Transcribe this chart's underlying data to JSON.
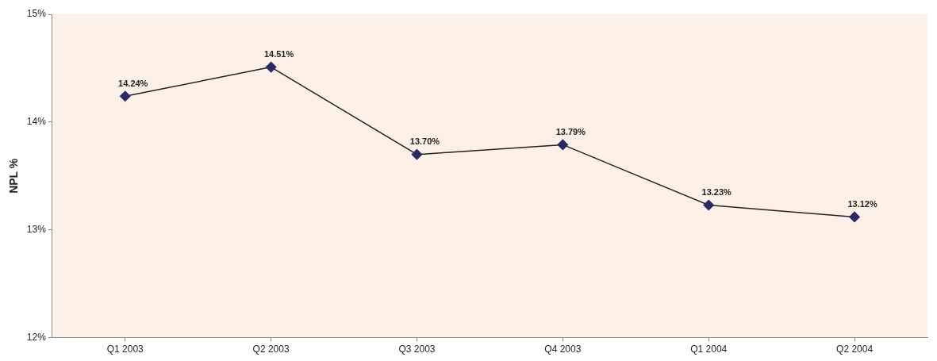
{
  "chart_data": {
    "type": "line",
    "ylabel": "NPL %",
    "categories": [
      "Q1 2003",
      "Q2 2003",
      "Q3 2003",
      "Q4 2003",
      "Q1 2004",
      "Q2 2004"
    ],
    "series": [
      {
        "color": "#2a2a66",
        "values": [
          14.24,
          14.51,
          13.7,
          13.79,
          13.23,
          13.12
        ],
        "value_labels": [
          "14.24%",
          "14.51%",
          "13.70%",
          "13.79%",
          "13.23%",
          "13.12%"
        ]
      }
    ],
    "ylim": [
      12,
      15
    ],
    "yticks": [
      {
        "value": 12,
        "label": "12%"
      },
      {
        "value": 13,
        "label": "13%"
      },
      {
        "value": 14,
        "label": "14%"
      },
      {
        "value": 15,
        "label": "15%"
      }
    ],
    "grid": false,
    "legend": false,
    "marker": "diamond",
    "line_style": "solid"
  }
}
